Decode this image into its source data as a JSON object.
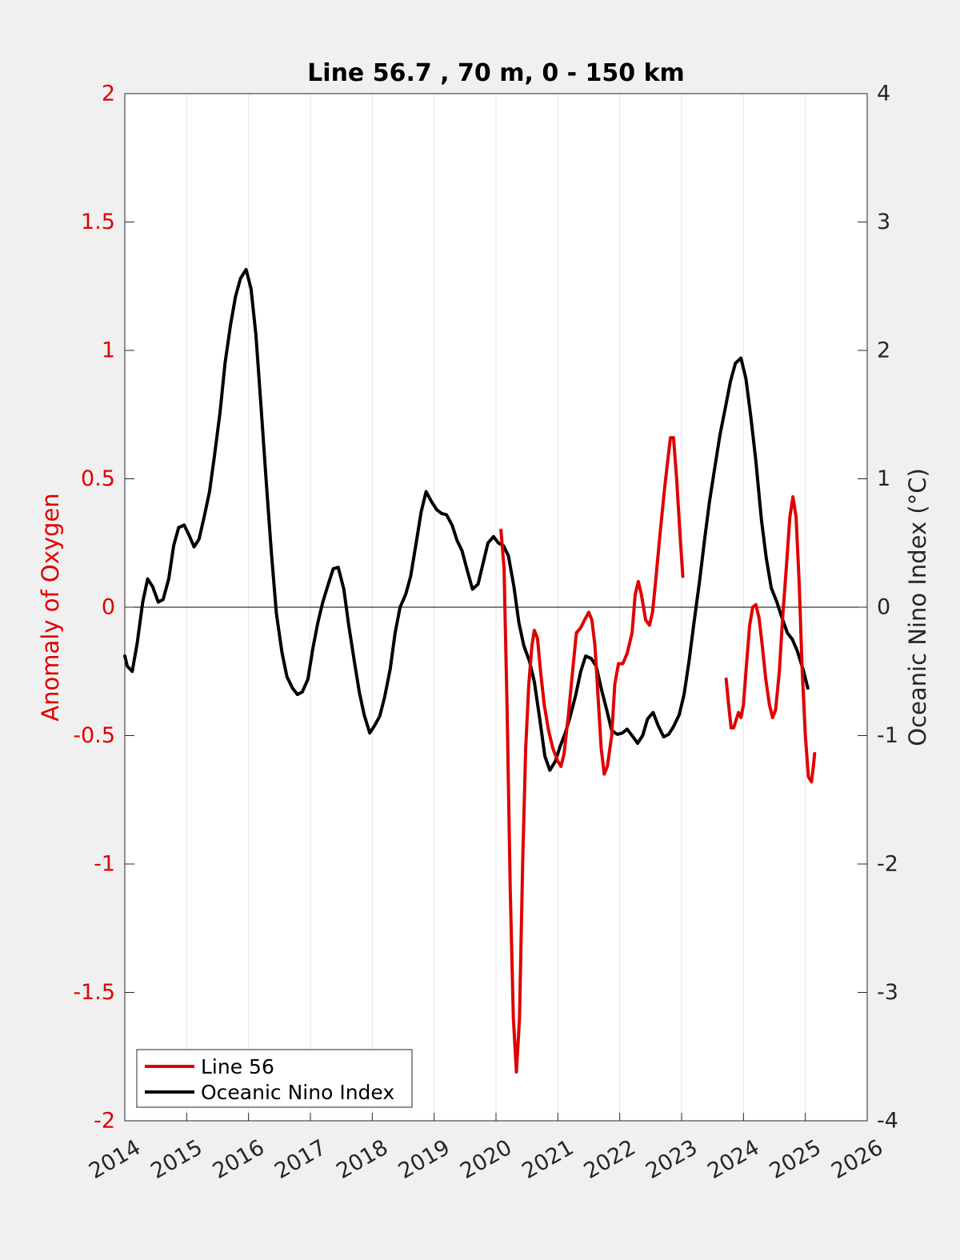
{
  "chart_data": {
    "type": "line",
    "title": "Line 56.7 , 70 m, 0 - 150 km",
    "xlabel": "",
    "ylabel": "Anomaly of Oxygen",
    "ylabel_right": "Oceanic Nino Index (°C)",
    "xlim": [
      2014,
      2026
    ],
    "ylim": [
      -2,
      2
    ],
    "ylim_right": [
      -4,
      4
    ],
    "x_ticks": [
      "2014",
      "2015",
      "2016",
      "2017",
      "2018",
      "2019",
      "2020",
      "2021",
      "2022",
      "2023",
      "2024",
      "2025",
      "2026"
    ],
    "y_ticks": [
      "-2",
      "-1.5",
      "-1",
      "-0.5",
      "0",
      "0.5",
      "1",
      "1.5",
      "2"
    ],
    "y_ticks_right": [
      "-4",
      "-3",
      "-2",
      "-1",
      "0",
      "1",
      "2",
      "3",
      "4"
    ],
    "grid": "vertical",
    "zero_line": true,
    "legend_placement": "bottom-left",
    "colors": {
      "left_axis": "#e00000",
      "oxygen": "#e00000",
      "oni": "#000000"
    },
    "series": [
      {
        "name": "Line 56",
        "axis": "left",
        "segments": [
          [
            [
              2020.08,
              0.3
            ],
            [
              2020.13,
              0.15
            ],
            [
              2020.18,
              -0.4
            ],
            [
              2020.23,
              -1.1
            ],
            [
              2020.28,
              -1.6
            ],
            [
              2020.33,
              -1.81
            ],
            [
              2020.38,
              -1.6
            ],
            [
              2020.43,
              -1.0
            ],
            [
              2020.48,
              -0.55
            ],
            [
              2020.53,
              -0.3
            ],
            [
              2020.58,
              -0.15
            ],
            [
              2020.62,
              -0.09
            ],
            [
              2020.67,
              -0.12
            ],
            [
              2020.72,
              -0.25
            ],
            [
              2020.78,
              -0.38
            ],
            [
              2020.85,
              -0.48
            ],
            [
              2020.92,
              -0.55
            ],
            [
              2021.0,
              -0.6
            ],
            [
              2021.05,
              -0.62
            ],
            [
              2021.1,
              -0.57
            ],
            [
              2021.17,
              -0.42
            ],
            [
              2021.23,
              -0.27
            ],
            [
              2021.3,
              -0.1
            ],
            [
              2021.37,
              -0.08
            ],
            [
              2021.43,
              -0.05
            ],
            [
              2021.5,
              -0.02
            ],
            [
              2021.55,
              -0.05
            ],
            [
              2021.6,
              -0.15
            ],
            [
              2021.65,
              -0.35
            ],
            [
              2021.7,
              -0.55
            ],
            [
              2021.75,
              -0.65
            ],
            [
              2021.8,
              -0.62
            ],
            [
              2021.87,
              -0.5
            ],
            [
              2021.92,
              -0.3
            ],
            [
              2021.98,
              -0.22
            ],
            [
              2022.05,
              -0.22
            ],
            [
              2022.12,
              -0.18
            ],
            [
              2022.2,
              -0.1
            ],
            [
              2022.25,
              0.05
            ],
            [
              2022.3,
              0.1
            ],
            [
              2022.35,
              0.05
            ],
            [
              2022.42,
              -0.05
            ],
            [
              2022.48,
              -0.07
            ],
            [
              2022.53,
              -0.02
            ],
            [
              2022.58,
              0.1
            ],
            [
              2022.65,
              0.28
            ],
            [
              2022.72,
              0.45
            ],
            [
              2022.78,
              0.58
            ],
            [
              2022.82,
              0.66
            ],
            [
              2022.87,
              0.66
            ],
            [
              2022.92,
              0.5
            ],
            [
              2022.97,
              0.3
            ],
            [
              2023.02,
              0.12
            ]
          ],
          [
            [
              2023.72,
              -0.28
            ],
            [
              2023.76,
              -0.38
            ],
            [
              2023.8,
              -0.47
            ],
            [
              2023.84,
              -0.47
            ],
            [
              2023.88,
              -0.44
            ],
            [
              2023.92,
              -0.41
            ],
            [
              2023.96,
              -0.43
            ],
            [
              2024.0,
              -0.38
            ],
            [
              2024.05,
              -0.22
            ],
            [
              2024.1,
              -0.07
            ],
            [
              2024.15,
              0.0
            ],
            [
              2024.2,
              0.01
            ],
            [
              2024.25,
              -0.04
            ],
            [
              2024.3,
              -0.14
            ],
            [
              2024.36,
              -0.28
            ],
            [
              2024.42,
              -0.38
            ],
            [
              2024.47,
              -0.43
            ],
            [
              2024.52,
              -0.4
            ],
            [
              2024.58,
              -0.25
            ],
            [
              2024.63,
              -0.05
            ],
            [
              2024.7,
              0.18
            ],
            [
              2024.75,
              0.35
            ],
            [
              2024.8,
              0.43
            ],
            [
              2024.85,
              0.35
            ],
            [
              2024.9,
              0.1
            ],
            [
              2024.95,
              -0.25
            ],
            [
              2025.0,
              -0.5
            ],
            [
              2025.05,
              -0.66
            ],
            [
              2025.1,
              -0.68
            ],
            [
              2025.13,
              -0.62
            ],
            [
              2025.15,
              -0.57
            ]
          ]
        ]
      },
      {
        "name": "Oceanic Nino Index",
        "axis": "right",
        "segments": [
          [
            [
              2014.0,
              -0.38
            ],
            [
              2014.04,
              -0.46
            ],
            [
              2014.12,
              -0.5
            ],
            [
              2014.2,
              -0.28
            ],
            [
              2014.29,
              0.04
            ],
            [
              2014.37,
              0.22
            ],
            [
              2014.45,
              0.16
            ],
            [
              2014.54,
              0.04
            ],
            [
              2014.62,
              0.06
            ],
            [
              2014.71,
              0.22
            ],
            [
              2014.79,
              0.48
            ],
            [
              2014.87,
              0.62
            ],
            [
              2014.96,
              0.64
            ],
            [
              2015.04,
              0.56
            ],
            [
              2015.12,
              0.47
            ],
            [
              2015.2,
              0.53
            ],
            [
              2015.29,
              0.72
            ],
            [
              2015.37,
              0.9
            ],
            [
              2015.45,
              1.18
            ],
            [
              2015.54,
              1.52
            ],
            [
              2015.62,
              1.9
            ],
            [
              2015.71,
              2.2
            ],
            [
              2015.79,
              2.42
            ],
            [
              2015.87,
              2.56
            ],
            [
              2015.96,
              2.63
            ],
            [
              2016.04,
              2.48
            ],
            [
              2016.12,
              2.12
            ],
            [
              2016.2,
              1.58
            ],
            [
              2016.29,
              0.95
            ],
            [
              2016.37,
              0.42
            ],
            [
              2016.45,
              -0.05
            ],
            [
              2016.54,
              -0.35
            ],
            [
              2016.62,
              -0.54
            ],
            [
              2016.71,
              -0.63
            ],
            [
              2016.79,
              -0.68
            ],
            [
              2016.87,
              -0.66
            ],
            [
              2016.96,
              -0.56
            ],
            [
              2017.04,
              -0.32
            ],
            [
              2017.12,
              -0.12
            ],
            [
              2017.2,
              0.04
            ],
            [
              2017.29,
              0.18
            ],
            [
              2017.37,
              0.3
            ],
            [
              2017.45,
              0.31
            ],
            [
              2017.54,
              0.14
            ],
            [
              2017.62,
              -0.14
            ],
            [
              2017.71,
              -0.42
            ],
            [
              2017.79,
              -0.66
            ],
            [
              2017.87,
              -0.84
            ],
            [
              2017.96,
              -0.98
            ],
            [
              2018.04,
              -0.92
            ],
            [
              2018.12,
              -0.85
            ],
            [
              2018.2,
              -0.7
            ],
            [
              2018.29,
              -0.48
            ],
            [
              2018.37,
              -0.2
            ],
            [
              2018.45,
              0.0
            ],
            [
              2018.54,
              0.1
            ],
            [
              2018.62,
              0.24
            ],
            [
              2018.71,
              0.5
            ],
            [
              2018.79,
              0.74
            ],
            [
              2018.87,
              0.9
            ],
            [
              2018.96,
              0.82
            ],
            [
              2019.04,
              0.76
            ],
            [
              2019.12,
              0.73
            ],
            [
              2019.2,
              0.72
            ],
            [
              2019.29,
              0.64
            ],
            [
              2019.37,
              0.52
            ],
            [
              2019.45,
              0.44
            ],
            [
              2019.54,
              0.28
            ],
            [
              2019.62,
              0.14
            ],
            [
              2019.71,
              0.18
            ],
            [
              2019.79,
              0.34
            ],
            [
              2019.87,
              0.5
            ],
            [
              2019.96,
              0.55
            ],
            [
              2020.04,
              0.5
            ],
            [
              2020.12,
              0.48
            ],
            [
              2020.2,
              0.4
            ],
            [
              2020.29,
              0.16
            ],
            [
              2020.37,
              -0.12
            ],
            [
              2020.45,
              -0.3
            ],
            [
              2020.54,
              -0.42
            ],
            [
              2020.62,
              -0.58
            ],
            [
              2020.71,
              -0.88
            ],
            [
              2020.79,
              -1.16
            ],
            [
              2020.87,
              -1.27
            ],
            [
              2020.96,
              -1.2
            ],
            [
              2021.04,
              -1.08
            ],
            [
              2021.12,
              -0.98
            ],
            [
              2021.2,
              -0.85
            ],
            [
              2021.29,
              -0.68
            ],
            [
              2021.37,
              -0.5
            ],
            [
              2021.45,
              -0.38
            ],
            [
              2021.54,
              -0.4
            ],
            [
              2021.62,
              -0.46
            ],
            [
              2021.71,
              -0.65
            ],
            [
              2021.79,
              -0.8
            ],
            [
              2021.87,
              -0.96
            ],
            [
              2021.96,
              -0.99
            ],
            [
              2022.04,
              -0.98
            ],
            [
              2022.12,
              -0.95
            ],
            [
              2022.2,
              -1.0
            ],
            [
              2022.29,
              -1.06
            ],
            [
              2022.37,
              -1.0
            ],
            [
              2022.45,
              -0.87
            ],
            [
              2022.54,
              -0.82
            ],
            [
              2022.62,
              -0.92
            ],
            [
              2022.71,
              -1.01
            ],
            [
              2022.79,
              -0.99
            ],
            [
              2022.87,
              -0.93
            ],
            [
              2022.96,
              -0.84
            ],
            [
              2023.04,
              -0.68
            ],
            [
              2023.12,
              -0.42
            ],
            [
              2023.2,
              -0.12
            ],
            [
              2023.29,
              0.2
            ],
            [
              2023.37,
              0.52
            ],
            [
              2023.45,
              0.82
            ],
            [
              2023.54,
              1.1
            ],
            [
              2023.62,
              1.34
            ],
            [
              2023.71,
              1.56
            ],
            [
              2023.79,
              1.76
            ],
            [
              2023.87,
              1.9
            ],
            [
              2023.96,
              1.94
            ],
            [
              2024.04,
              1.78
            ],
            [
              2024.12,
              1.48
            ],
            [
              2024.2,
              1.14
            ],
            [
              2024.29,
              0.68
            ],
            [
              2024.37,
              0.38
            ],
            [
              2024.45,
              0.15
            ],
            [
              2024.54,
              0.04
            ],
            [
              2024.62,
              -0.08
            ],
            [
              2024.71,
              -0.2
            ],
            [
              2024.79,
              -0.25
            ],
            [
              2024.87,
              -0.34
            ],
            [
              2024.96,
              -0.48
            ],
            [
              2025.04,
              -0.63
            ]
          ]
        ]
      }
    ]
  }
}
